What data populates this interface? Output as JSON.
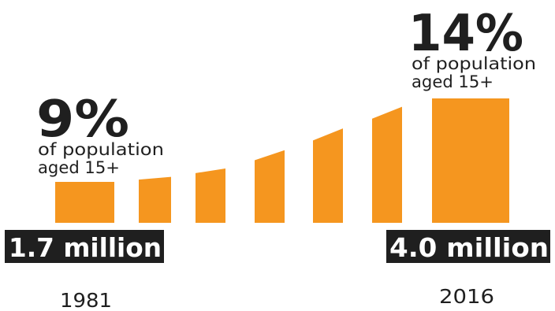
{
  "chart_data": {
    "type": "bar",
    "colors": {
      "bar": "#F5961F",
      "label_bg": "#1f1f1f",
      "text": "#1f1f1f"
    },
    "values": [
      9,
      9.3,
      9.8,
      10.9,
      12.2,
      13.5,
      14
    ],
    "first": {
      "percent": "9%",
      "caption_line1": "of population",
      "caption_line2": "aged 15+",
      "count": "1.7 million",
      "year": "1981"
    },
    "last": {
      "percent": "14%",
      "caption_line1": "of population",
      "caption_line2": "aged 15+",
      "count": "4.0 million",
      "year": "2016"
    }
  }
}
